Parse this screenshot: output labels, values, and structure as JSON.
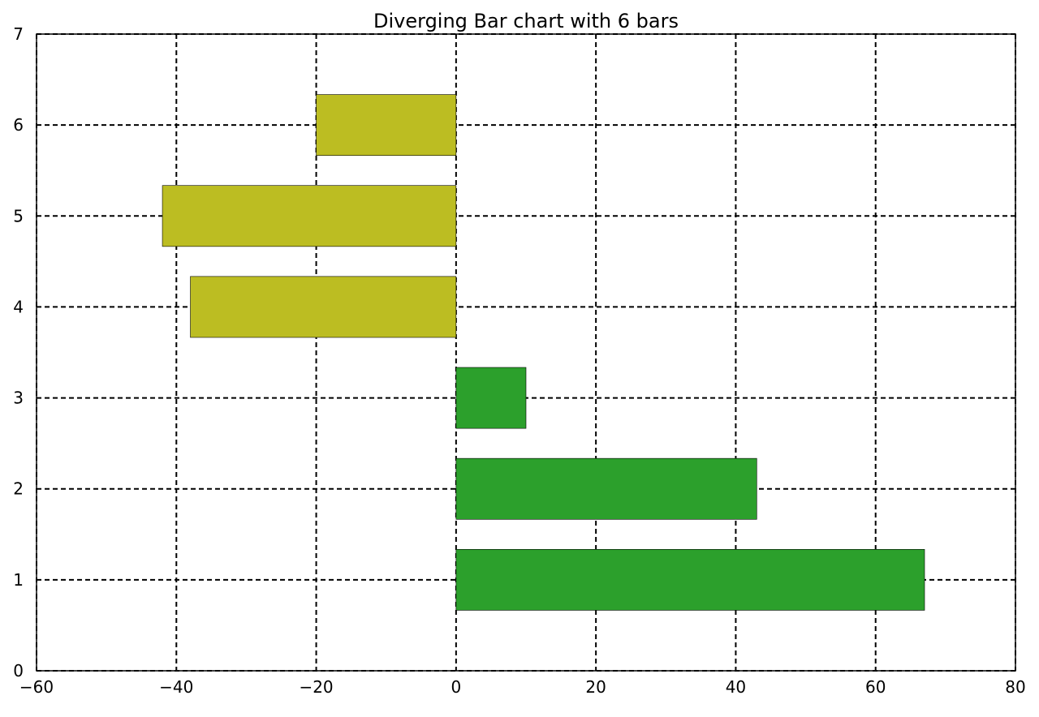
{
  "chart_data": {
    "type": "bar",
    "orientation": "horizontal",
    "title": "Diverging Bar chart with 6 bars",
    "xlabel": "",
    "ylabel": "",
    "xlim": [
      -60,
      80
    ],
    "ylim": [
      0,
      7
    ],
    "x_ticks": [
      "−60",
      "−40",
      "−20",
      "0",
      "20",
      "40",
      "60",
      "80"
    ],
    "x_tick_values": [
      -60,
      -40,
      -20,
      0,
      20,
      40,
      60,
      80
    ],
    "y_ticks": [
      "0",
      "1",
      "2",
      "3",
      "4",
      "5",
      "6",
      "7"
    ],
    "y_tick_values": [
      0,
      1,
      2,
      3,
      4,
      5,
      6,
      7
    ],
    "grid": true,
    "grid_style": "dashed",
    "bar_height_units": 0.67,
    "categories": [
      1,
      2,
      3,
      4,
      5,
      6
    ],
    "values": [
      67,
      43,
      10,
      -38,
      -42,
      -20
    ],
    "colors": {
      "positive": "#2ca02c",
      "negative": "#bcbd22",
      "grid": "#000000",
      "axes": "#000000"
    }
  }
}
